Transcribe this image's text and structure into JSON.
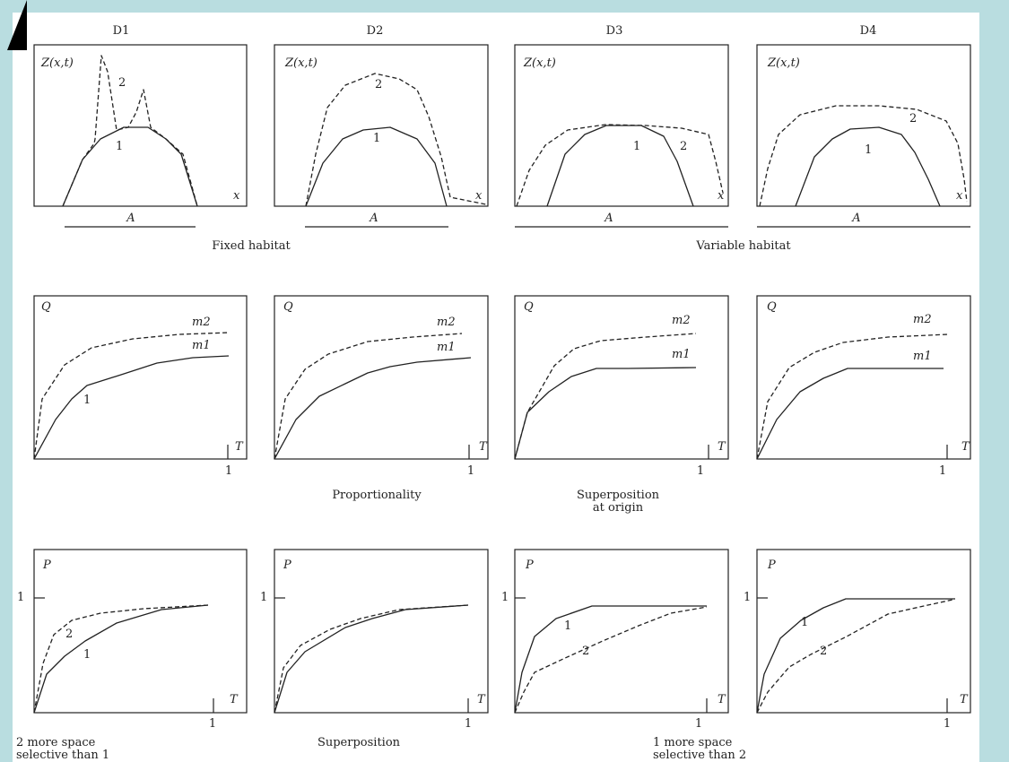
{
  "columns": [
    "D1",
    "D2",
    "D3",
    "D4"
  ],
  "rows": {
    "z": {
      "axis_y": "Z(x,t)",
      "axis_x": "x",
      "domain_label": "A",
      "curve_labels": [
        "1",
        "2"
      ],
      "group_captions": [
        "Fixed habitat",
        "Variable habitat"
      ]
    },
    "q": {
      "axis_y": "Q",
      "axis_x": "T",
      "tick_x": "1",
      "curve_labels": [
        "m1",
        "m2"
      ],
      "inline_label": "1",
      "captions": [
        "Proportionality",
        "Superposition\nat origin"
      ]
    },
    "p": {
      "axis_y": "P",
      "axis_x": "T",
      "tick_x": "1",
      "tick_y": "1",
      "curve_labels": [
        "1",
        "2"
      ],
      "captions": [
        "2 more space\nselective than 1",
        "Superposition",
        "1 more space\nselective than 2"
      ]
    }
  },
  "colors": {
    "background": "#b9dde0",
    "sheet": "#ffffff",
    "ink": "#222222"
  }
}
